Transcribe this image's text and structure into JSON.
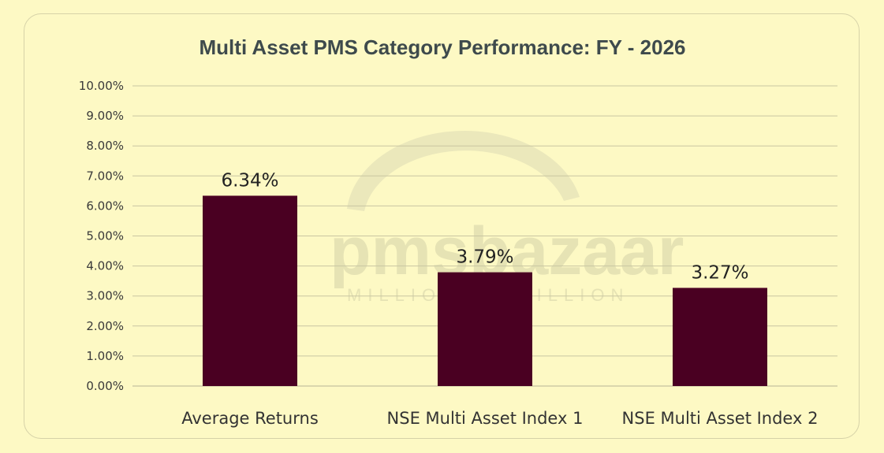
{
  "chart_data": {
    "type": "bar",
    "title": "Multi Asset PMS Category Performance: FY - 2026",
    "categories": [
      "Average Returns",
      "NSE Multi Asset Index 1",
      "NSE Multi Asset Index 2"
    ],
    "values": [
      6.34,
      3.79,
      3.27
    ],
    "data_labels": [
      "6.34%",
      "3.79%",
      "3.27%"
    ],
    "ylim": [
      0,
      10
    ],
    "yticks": [
      "0.00%",
      "1.00%",
      "2.00%",
      "3.00%",
      "4.00%",
      "5.00%",
      "6.00%",
      "7.00%",
      "8.00%",
      "9.00%",
      "10.00%"
    ],
    "grid": true,
    "bar_color": "#4a0022",
    "xlabel": "",
    "ylabel": ""
  },
  "watermark": {
    "brand": "pmsbazaar",
    "tagline": "MILLION TO BILLION"
  },
  "colors": {
    "background": "#fdf9c4",
    "title": "#3e4a4c"
  }
}
